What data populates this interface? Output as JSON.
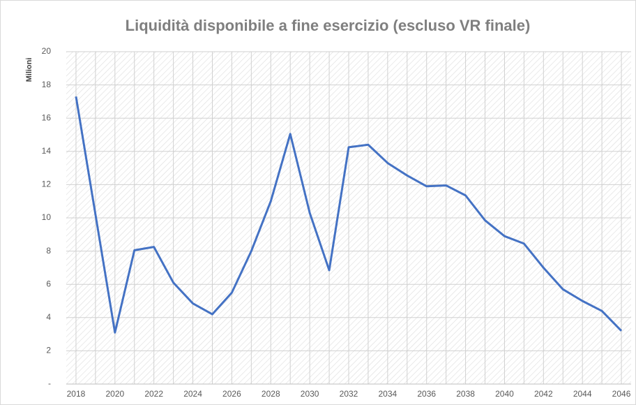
{
  "chart_data": {
    "type": "line",
    "title": "Liquidità disponibile a fine esercizio (escluso VR finale)",
    "y_label": "Milioni",
    "x": [
      2018,
      2019,
      2020,
      2021,
      2022,
      2023,
      2024,
      2025,
      2026,
      2027,
      2028,
      2029,
      2030,
      2031,
      2032,
      2033,
      2034,
      2035,
      2036,
      2037,
      2038,
      2039,
      2040,
      2041,
      2042,
      2043,
      2044,
      2045,
      2046
    ],
    "series": [
      {
        "name": "Liquidità",
        "color": "#4472c4",
        "values": [
          17.3,
          10.2,
          3.1,
          8.05,
          8.25,
          6.1,
          4.85,
          4.2,
          5.5,
          8.0,
          11.0,
          15.05,
          10.3,
          6.85,
          14.25,
          14.4,
          13.3,
          12.55,
          11.9,
          11.95,
          11.35,
          9.85,
          8.9,
          8.45,
          7.0,
          5.7,
          5.0,
          4.4,
          3.2
        ]
      }
    ],
    "xlim": [
      2017.5,
      2046.5
    ],
    "xticks": [
      2018,
      2020,
      2022,
      2024,
      2026,
      2028,
      2030,
      2032,
      2034,
      2036,
      2038,
      2040,
      2042,
      2044,
      2046
    ],
    "ylim": [
      0,
      20
    ],
    "yticks": [
      {
        "value": 0,
        "label": "-"
      },
      2,
      4,
      6,
      8,
      10,
      12,
      14,
      16,
      18,
      20
    ],
    "grid": true
  }
}
